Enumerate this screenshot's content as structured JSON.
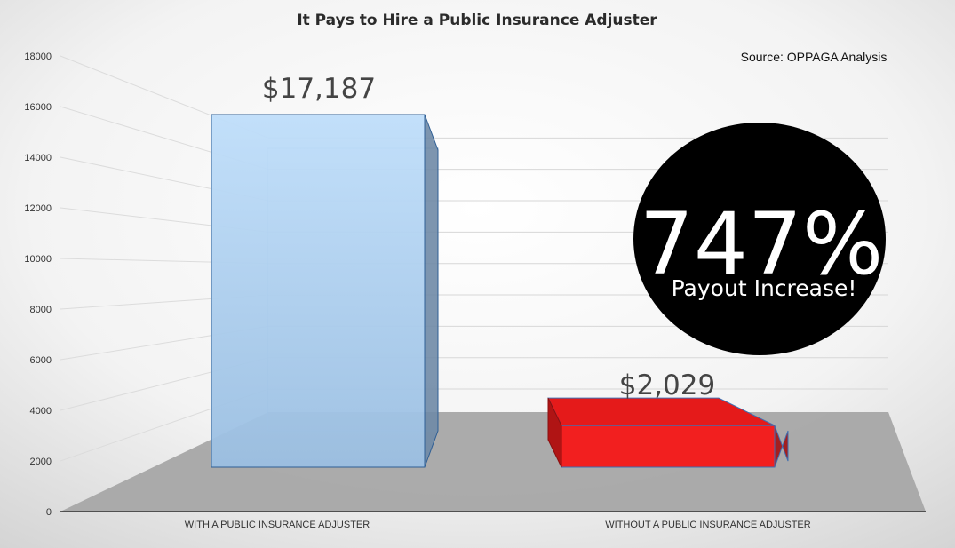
{
  "chart_data": {
    "type": "bar",
    "title": "It Pays to Hire a Public Insurance Adjuster",
    "subtitle": "Source: OPPAGA Analysis",
    "categories": [
      "WITH A PUBLIC INSURANCE ADJUSTER",
      "WITHOUT A PUBLIC INSURANCE ADJUSTER"
    ],
    "values": [
      17187,
      2029
    ],
    "data_labels": [
      "$17,187",
      "$2,029"
    ],
    "colors": [
      "#a9cdf0",
      "#ee1c1c"
    ],
    "ylim": [
      0,
      18000
    ],
    "yticks": [
      "0",
      "2000",
      "4000",
      "6000",
      "8000",
      "10000",
      "12000",
      "14000",
      "16000",
      "18000"
    ],
    "grid": true,
    "legend": "none",
    "style": "3d"
  },
  "callout": {
    "percent": "747%",
    "text": "Payout Increase!"
  }
}
